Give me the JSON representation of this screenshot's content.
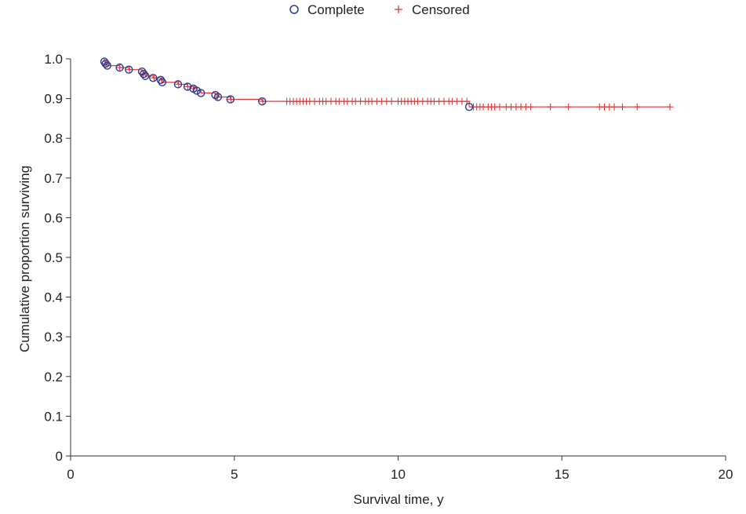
{
  "chart_data": {
    "type": "line",
    "xlabel": "Survival time, y",
    "ylabel": "Cumulative proportion surviving",
    "xlim": [
      0,
      20
    ],
    "ylim": [
      0,
      1.0
    ],
    "x_ticks": [
      0,
      5,
      10,
      15,
      20
    ],
    "x_tick_labels": [
      "0",
      "5",
      "10",
      "15",
      "20"
    ],
    "y_ticks": [
      0,
      0.1,
      0.2,
      0.3,
      0.4,
      0.5,
      0.6,
      0.7,
      0.8,
      0.9,
      1.0
    ],
    "y_tick_labels": [
      "0",
      "0.1",
      "0.2",
      "0.3",
      "0.4",
      "0.5",
      "0.6",
      "0.7",
      "0.8",
      "0.9",
      "1.0"
    ],
    "grid": false,
    "legend_position": "top-center",
    "legend": [
      {
        "name": "Complete",
        "marker": "circle",
        "color": "#2b3a8c"
      },
      {
        "name": "Censored",
        "marker": "plus",
        "color": "#e03a3a"
      }
    ],
    "curve_color": "#e03a3a",
    "series": [
      {
        "name": "Complete",
        "points": [
          [
            1.03,
            0.993
          ],
          [
            1.07,
            0.988
          ],
          [
            1.12,
            0.983
          ],
          [
            1.5,
            0.978
          ],
          [
            1.78,
            0.973
          ],
          [
            2.18,
            0.968
          ],
          [
            2.23,
            0.962
          ],
          [
            2.28,
            0.957
          ],
          [
            2.52,
            0.952
          ],
          [
            2.75,
            0.947
          ],
          [
            2.8,
            0.941
          ],
          [
            3.28,
            0.936
          ],
          [
            3.57,
            0.93
          ],
          [
            3.75,
            0.925
          ],
          [
            3.85,
            0.92
          ],
          [
            3.98,
            0.914
          ],
          [
            4.42,
            0.909
          ],
          [
            4.5,
            0.904
          ],
          [
            4.88,
            0.898
          ],
          [
            5.85,
            0.893
          ],
          [
            12.17,
            0.879
          ]
        ]
      },
      {
        "name": "Censored",
        "points": [
          [
            1.08,
            0.988
          ],
          [
            1.5,
            0.978
          ],
          [
            1.8,
            0.973
          ],
          [
            2.22,
            0.962
          ],
          [
            2.55,
            0.952
          ],
          [
            2.78,
            0.947
          ],
          [
            3.3,
            0.936
          ],
          [
            3.58,
            0.93
          ],
          [
            3.78,
            0.925
          ],
          [
            4.48,
            0.904
          ],
          [
            4.9,
            0.898
          ],
          [
            5.87,
            0.893
          ],
          [
            6.6,
            0.893
          ],
          [
            6.7,
            0.893
          ],
          [
            6.8,
            0.893
          ],
          [
            6.9,
            0.893
          ],
          [
            7.0,
            0.893
          ],
          [
            7.1,
            0.893
          ],
          [
            7.2,
            0.893
          ],
          [
            7.3,
            0.893
          ],
          [
            7.45,
            0.893
          ],
          [
            7.6,
            0.893
          ],
          [
            7.7,
            0.893
          ],
          [
            7.8,
            0.893
          ],
          [
            7.95,
            0.893
          ],
          [
            8.1,
            0.893
          ],
          [
            8.2,
            0.893
          ],
          [
            8.35,
            0.893
          ],
          [
            8.45,
            0.893
          ],
          [
            8.6,
            0.893
          ],
          [
            8.7,
            0.893
          ],
          [
            8.85,
            0.893
          ],
          [
            9.0,
            0.893
          ],
          [
            9.1,
            0.893
          ],
          [
            9.2,
            0.893
          ],
          [
            9.35,
            0.893
          ],
          [
            9.5,
            0.893
          ],
          [
            9.65,
            0.893
          ],
          [
            9.8,
            0.893
          ],
          [
            10.0,
            0.893
          ],
          [
            10.1,
            0.893
          ],
          [
            10.2,
            0.893
          ],
          [
            10.3,
            0.893
          ],
          [
            10.4,
            0.893
          ],
          [
            10.5,
            0.893
          ],
          [
            10.6,
            0.893
          ],
          [
            10.75,
            0.893
          ],
          [
            10.9,
            0.893
          ],
          [
            11.0,
            0.893
          ],
          [
            11.1,
            0.893
          ],
          [
            11.25,
            0.893
          ],
          [
            11.4,
            0.893
          ],
          [
            11.55,
            0.893
          ],
          [
            11.65,
            0.893
          ],
          [
            11.8,
            0.893
          ],
          [
            11.95,
            0.893
          ],
          [
            12.1,
            0.893
          ],
          [
            12.3,
            0.879
          ],
          [
            12.4,
            0.879
          ],
          [
            12.5,
            0.879
          ],
          [
            12.6,
            0.879
          ],
          [
            12.75,
            0.879
          ],
          [
            12.85,
            0.879
          ],
          [
            12.95,
            0.879
          ],
          [
            13.1,
            0.879
          ],
          [
            13.3,
            0.879
          ],
          [
            13.45,
            0.879
          ],
          [
            13.6,
            0.879
          ],
          [
            13.75,
            0.879
          ],
          [
            13.9,
            0.879
          ],
          [
            14.05,
            0.879
          ],
          [
            14.65,
            0.879
          ],
          [
            15.2,
            0.879
          ],
          [
            16.15,
            0.879
          ],
          [
            16.3,
            0.879
          ],
          [
            16.45,
            0.879
          ],
          [
            16.6,
            0.879
          ],
          [
            16.85,
            0.879
          ],
          [
            17.3,
            0.879
          ],
          [
            18.3,
            0.879
          ]
        ]
      }
    ],
    "step_curve": [
      [
        1.03,
        1.0
      ],
      [
        1.03,
        0.993
      ],
      [
        1.07,
        0.993
      ],
      [
        1.07,
        0.988
      ],
      [
        1.12,
        0.988
      ],
      [
        1.12,
        0.983
      ],
      [
        1.5,
        0.983
      ],
      [
        1.5,
        0.978
      ],
      [
        1.78,
        0.978
      ],
      [
        1.78,
        0.973
      ],
      [
        2.18,
        0.973
      ],
      [
        2.18,
        0.968
      ],
      [
        2.23,
        0.968
      ],
      [
        2.23,
        0.962
      ],
      [
        2.28,
        0.962
      ],
      [
        2.28,
        0.957
      ],
      [
        2.52,
        0.957
      ],
      [
        2.52,
        0.952
      ],
      [
        2.75,
        0.952
      ],
      [
        2.75,
        0.947
      ],
      [
        2.8,
        0.947
      ],
      [
        2.8,
        0.941
      ],
      [
        3.28,
        0.941
      ],
      [
        3.28,
        0.936
      ],
      [
        3.57,
        0.936
      ],
      [
        3.57,
        0.93
      ],
      [
        3.75,
        0.93
      ],
      [
        3.75,
        0.925
      ],
      [
        3.85,
        0.925
      ],
      [
        3.85,
        0.92
      ],
      [
        3.98,
        0.92
      ],
      [
        3.98,
        0.914
      ],
      [
        4.42,
        0.914
      ],
      [
        4.42,
        0.909
      ],
      [
        4.5,
        0.909
      ],
      [
        4.5,
        0.904
      ],
      [
        4.88,
        0.904
      ],
      [
        4.88,
        0.898
      ],
      [
        5.85,
        0.898
      ],
      [
        5.85,
        0.893
      ],
      [
        12.17,
        0.893
      ],
      [
        12.17,
        0.879
      ],
      [
        18.3,
        0.879
      ]
    ]
  }
}
